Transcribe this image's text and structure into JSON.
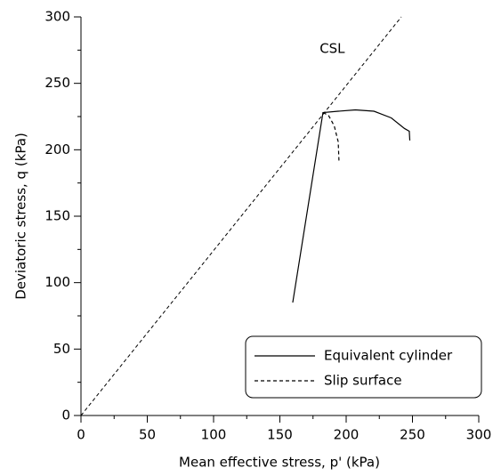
{
  "chart_data": {
    "type": "line",
    "x_label": "Mean effective stress, p' (kPa)",
    "y_label": "Deviatoric stress, q (kPa)",
    "xlim": [
      0,
      300
    ],
    "ylim": [
      0,
      300
    ],
    "xticks": [
      0,
      50,
      100,
      150,
      200,
      250,
      300
    ],
    "yticks": [
      0,
      50,
      100,
      150,
      200,
      250,
      300
    ],
    "xminorticks": [
      25,
      75,
      125,
      175,
      225,
      275
    ],
    "yminorticks": [
      25,
      75,
      125,
      175,
      225,
      275
    ],
    "grid": false,
    "legend_position": "lower right",
    "reference_line": {
      "label": "CSL",
      "color": "#000000",
      "dash": true,
      "x": [
        0,
        241.6
      ],
      "values": [
        0,
        300
      ],
      "label_x": 180,
      "label_y": 276
    },
    "series": [
      {
        "name": "Equivalent cylinder",
        "color": "#000000",
        "dash": false,
        "x": [
          159.7,
          182.5,
          194,
          207,
          221,
          234,
          244,
          247.6,
          248
        ],
        "values": [
          85,
          228,
          229,
          230,
          229,
          224,
          216,
          214,
          207
        ]
      },
      {
        "name": "Slip surface",
        "color": "#000000",
        "dash": true,
        "x": [
          182.5,
          186.6,
          191,
          194,
          194.6
        ],
        "values": [
          228,
          226,
          218,
          206,
          191
        ]
      }
    ]
  }
}
